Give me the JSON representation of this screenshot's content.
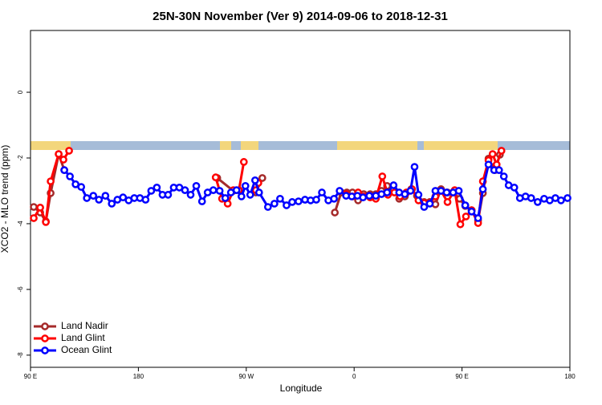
{
  "chart_data": {
    "type": "line",
    "title": "25N-30N November (Ver 9)   2014-09-06 to 2018-12-31",
    "xlabel": "Longitude",
    "ylabel": "XCO2 - MLO trend (ppm)",
    "xlim": [
      90,
      540
    ],
    "ylim": [
      -8.37,
      1.88
    ],
    "xticks": [
      {
        "value": 90,
        "label": "90 E"
      },
      180,
      {
        "value": 270,
        "label": "90 W"
      },
      {
        "value": 360,
        "label": "0"
      },
      {
        "value": 450,
        "label": "90 E"
      },
      {
        "value": 540,
        "label": "180"
      }
    ],
    "yticks": [
      0,
      -2,
      -4,
      -6,
      -8
    ],
    "legend": "bottomleft",
    "series": [
      {
        "name": "Land Nadir",
        "color": "#a52a2a",
        "x": [
          92.7,
          98.1,
          102.8,
          106.8,
          113.5,
          118.2,
          null,
          245.8,
          259.2,
          null,
          278.0,
          283.4,
          null,
          343.9,
          349.2,
          353.9,
          358.6,
          363.3,
          368.0,
          373.4,
          378.1,
          382.8,
          387.5,
          392.9,
          397.6,
          402.3,
          407.7,
          412.4,
          418.4,
          423.1,
          427.8,
          432.5,
          437.9,
          442.6,
          448.0,
          452.7,
          458.0,
          463.4,
          467.4,
          472.1,
          477.5,
          481.6
        ],
        "values": [
          -3.49,
          -3.66,
          -3.93,
          -3.07,
          -1.88,
          -2.37,
          null,
          -2.61,
          -3.0,
          null,
          -3.05,
          -2.61,
          null,
          -3.66,
          -3.05,
          -3.05,
          -3.05,
          -3.29,
          -3.1,
          -3.1,
          -3.1,
          -3.0,
          -2.85,
          -2.95,
          -3.24,
          -3.17,
          -2.95,
          -3.15,
          -3.34,
          -3.34,
          -3.41,
          -2.95,
          -3.05,
          -3.05,
          -3.24,
          -3.46,
          -3.59,
          -3.9,
          -3.07,
          -2.02,
          -2.37,
          -1.9
        ]
      },
      {
        "name": "Land Glint",
        "color": "#ff0000",
        "x": [
          92.7,
          98.1,
          102.8,
          106.8,
          113.5,
          117.5,
          122.2,
          null,
          244.5,
          249.8,
          254.5,
          259.2,
          263.9,
          268.0,
          null,
          278.0,
          280.1,
          null,
          353.3,
          358.6,
          363.3,
          368.0,
          373.4,
          378.1,
          383.5,
          388.2,
          393.6,
          398.3,
          403.6,
          408.3,
          413.7,
          418.4,
          423.1,
          427.8,
          432.5,
          437.9,
          443.9,
          448.6,
          453.3,
          458.0,
          463.4,
          467.4,
          472.1,
          475.5,
          478.9,
          482.9
        ],
        "values": [
          -3.83,
          -3.51,
          -3.95,
          -2.71,
          -1.88,
          -2.05,
          -1.78,
          null,
          -2.59,
          -3.24,
          -3.39,
          -2.98,
          -2.98,
          -2.12,
          null,
          -2.98,
          -2.76,
          null,
          -3.1,
          -3.17,
          -3.05,
          -3.17,
          -3.2,
          -3.24,
          -2.56,
          -3.12,
          -3.05,
          -3.17,
          -3.05,
          -2.95,
          -3.29,
          -3.37,
          -3.37,
          -3.17,
          -3.0,
          -3.34,
          -2.98,
          -4.02,
          -3.78,
          -3.59,
          -3.98,
          -2.71,
          -2.07,
          -1.88,
          -2.2,
          -1.78
        ]
      },
      {
        "name": "Ocean Glint",
        "color": "#0000ff",
        "x": [
          118.2,
          122.9,
          127.6,
          132.3,
          137.0,
          142.4,
          147.1,
          152.5,
          157.8,
          162.5,
          167.2,
          171.9,
          176.6,
          181.3,
          186.0,
          190.7,
          195.4,
          200.1,
          204.8,
          209.5,
          214.2,
          218.9,
          223.6,
          228.3,
          233.1,
          237.8,
          242.5,
          247.8,
          252.5,
          257.2,
          261.9,
          266.0,
          269.3,
          273.3,
          277.4,
          280.7,
          288.1,
          293.5,
          298.2,
          303.6,
          308.3,
          313.6,
          319.0,
          323.7,
          328.4,
          333.1,
          338.5,
          343.2,
          347.9,
          353.3,
          358.0,
          362.7,
          367.4,
          372.7,
          378.1,
          382.8,
          387.5,
          392.9,
          397.6,
          402.3,
          407.0,
          410.4,
          413.7,
          418.4,
          423.1,
          427.8,
          432.5,
          437.2,
          442.6,
          447.3,
          452.7,
          458.0,
          463.4,
          467.4,
          472.1,
          476.8,
          480.9,
          484.9,
          488.9,
          493.6,
          498.3,
          503.0,
          507.7,
          513.1,
          518.5,
          523.2,
          527.9,
          532.6,
          538.0
        ],
        "values": [
          -2.37,
          -2.56,
          -2.8,
          -2.88,
          -3.22,
          -3.15,
          -3.27,
          -3.15,
          -3.39,
          -3.27,
          -3.2,
          -3.29,
          -3.22,
          -3.22,
          -3.27,
          -3.0,
          -2.9,
          -3.12,
          -3.12,
          -2.9,
          -2.9,
          -2.98,
          -3.12,
          -2.85,
          -3.32,
          -3.05,
          -2.98,
          -3.0,
          -3.22,
          -3.05,
          -2.98,
          -3.17,
          -2.85,
          -3.12,
          -2.68,
          -3.05,
          -3.49,
          -3.39,
          -3.24,
          -3.44,
          -3.34,
          -3.32,
          -3.27,
          -3.29,
          -3.27,
          -3.05,
          -3.29,
          -3.24,
          -3.0,
          -3.15,
          -3.17,
          -3.15,
          -3.2,
          -3.15,
          -3.15,
          -3.1,
          -3.05,
          -2.83,
          -3.05,
          -3.1,
          -3.0,
          -2.27,
          -3.12,
          -3.49,
          -3.39,
          -3.0,
          -3.0,
          -3.05,
          -3.05,
          -3.0,
          -3.44,
          -3.63,
          -3.83,
          -2.95,
          -2.2,
          -2.37,
          -2.37,
          -2.56,
          -2.83,
          -2.9,
          -3.22,
          -3.17,
          -3.22,
          -3.34,
          -3.24,
          -3.29,
          -3.22,
          -3.29,
          -3.22
        ]
      }
    ]
  }
}
